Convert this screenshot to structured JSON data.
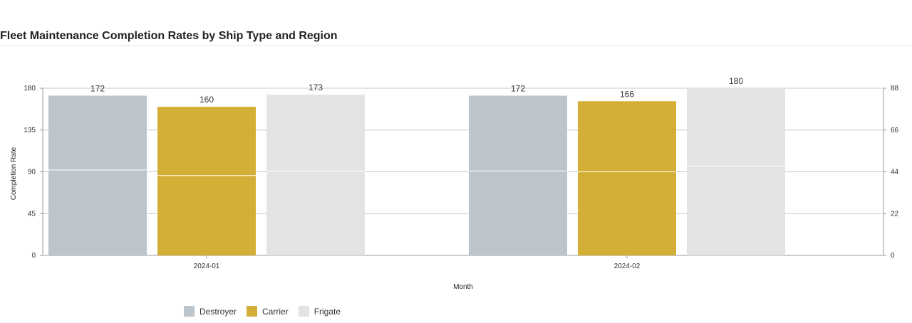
{
  "chart_data": {
    "type": "bar",
    "title": "Fleet Maintenance Completion Rates by Ship Type and Region",
    "xlabel": "Month",
    "ylabel": "Completion Rate",
    "categories": [
      "2024-01",
      "2024-02"
    ],
    "ylim": [
      0,
      180
    ],
    "yticks": [
      "0",
      "45",
      "90",
      "135",
      "180"
    ],
    "y2lim": [
      0,
      88
    ],
    "y2ticks": [
      "0",
      "22",
      "44",
      "66",
      "88"
    ],
    "grid": true,
    "legend_position": "bottom-left",
    "series": [
      {
        "name": "Destroyer",
        "color": "#bdc5cc",
        "values": [
          172,
          172
        ],
        "inner_divider": [
          92,
          91
        ]
      },
      {
        "name": "Carrier",
        "color": "#d4af37",
        "values": [
          160,
          166
        ],
        "inner_divider": [
          86,
          90
        ]
      },
      {
        "name": "Frigate",
        "color": "#e4e3e1",
        "values": [
          173,
          180
        ],
        "inner_divider": [
          91,
          96
        ]
      }
    ]
  }
}
